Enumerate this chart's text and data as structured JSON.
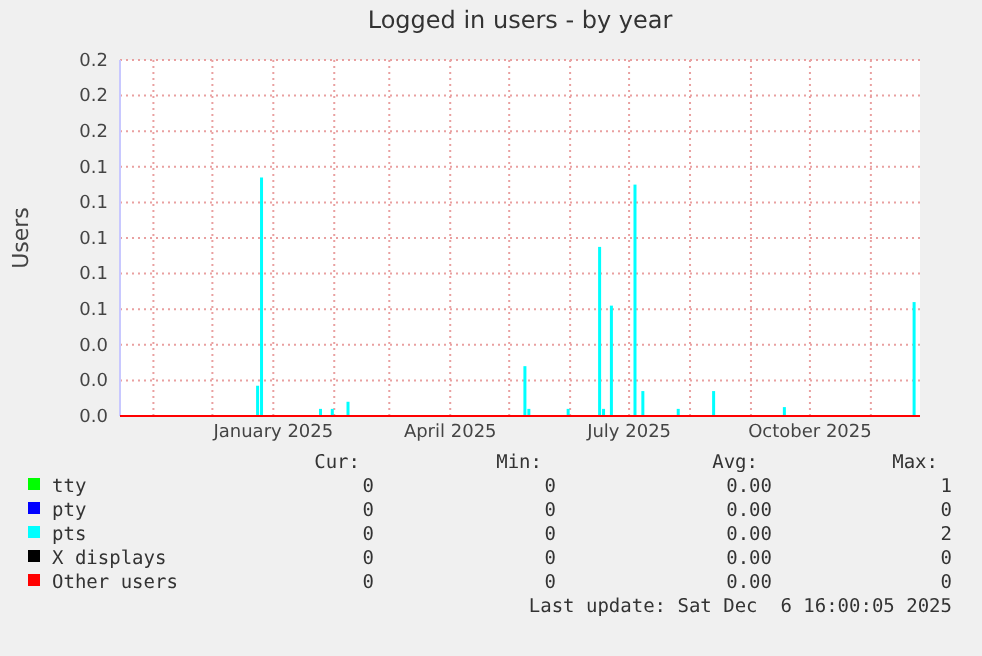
{
  "chart_data": {
    "type": "bar",
    "title": "Logged in users - by year",
    "ylabel": "Users",
    "xlim": [
      "2024-10-15",
      "2025-11-26"
    ],
    "xticks": [
      {
        "value": "2024-11-01",
        "label": null
      },
      {
        "value": "2024-12-01",
        "label": null
      },
      {
        "value": "2025-01-01",
        "label": "January 2025"
      },
      {
        "value": "2025-02-01",
        "label": null
      },
      {
        "value": "2025-03-01",
        "label": null
      },
      {
        "value": "2025-04-01",
        "label": "April 2025"
      },
      {
        "value": "2025-05-01",
        "label": null
      },
      {
        "value": "2025-06-01",
        "label": null
      },
      {
        "value": "2025-07-01",
        "label": "July 2025"
      },
      {
        "value": "2025-08-01",
        "label": null
      },
      {
        "value": "2025-09-01",
        "label": null
      },
      {
        "value": "2025-10-01",
        "label": "October 2025"
      },
      {
        "value": "2025-11-01",
        "label": null
      }
    ],
    "ylim": [
      0,
      0.2
    ],
    "yticks": [
      {
        "value": 0,
        "label": "0.0"
      },
      {
        "value": 0.02,
        "label": "0.0"
      },
      {
        "value": 0.04,
        "label": "0.0"
      },
      {
        "value": 0.06,
        "label": "0.1"
      },
      {
        "value": 0.08,
        "label": "0.1"
      },
      {
        "value": 0.1,
        "label": "0.1"
      },
      {
        "value": 0.12,
        "label": "0.1"
      },
      {
        "value": 0.14,
        "label": "0.1"
      },
      {
        "value": 0.16,
        "label": "0.2"
      },
      {
        "value": 0.18,
        "label": "0.2"
      },
      {
        "value": 0.2,
        "label": "0.2"
      }
    ],
    "grid": true,
    "legend": "bottom",
    "series": [
      {
        "name": "tty",
        "color": "#00ff00"
      },
      {
        "name": "pty",
        "color": "#0000ff"
      },
      {
        "name": "pts",
        "color": "#00ffff",
        "x": [
          "2024-12-24",
          "2024-12-26",
          "2025-01-25",
          "2025-01-31",
          "2025-02-08",
          "2025-05-09",
          "2025-05-11",
          "2025-05-31",
          "2025-06-16",
          "2025-06-18",
          "2025-06-22",
          "2025-07-04",
          "2025-07-08",
          "2025-07-26",
          "2025-08-13",
          "2025-09-18",
          "2025-11-23"
        ],
        "values": [
          0.017,
          0.134,
          0.004,
          0.004,
          0.008,
          0.028,
          0.004,
          0.004,
          0.095,
          0.004,
          0.062,
          0.13,
          0.014,
          0.004,
          0.014,
          0.005,
          0.064
        ]
      },
      {
        "name": "X displays",
        "color": "#000000"
      },
      {
        "name": "Other users",
        "color": "#ff0000",
        "type": "line",
        "x": [
          "2024-10-15",
          "2025-11-26"
        ],
        "values": [
          0,
          0
        ]
      }
    ],
    "annotations": [
      "Cur:",
      "Min:",
      "Avg:",
      "Max:",
      "0",
      "0",
      "0.00",
      "1",
      "0",
      "0",
      "0.00",
      "0",
      "0",
      "0",
      "0.00",
      "2",
      "0",
      "0",
      "0.00",
      "0",
      "0",
      "0",
      "0.00",
      "0",
      "Last update: Sat Dec  6 16:00:05 2025"
    ]
  }
}
